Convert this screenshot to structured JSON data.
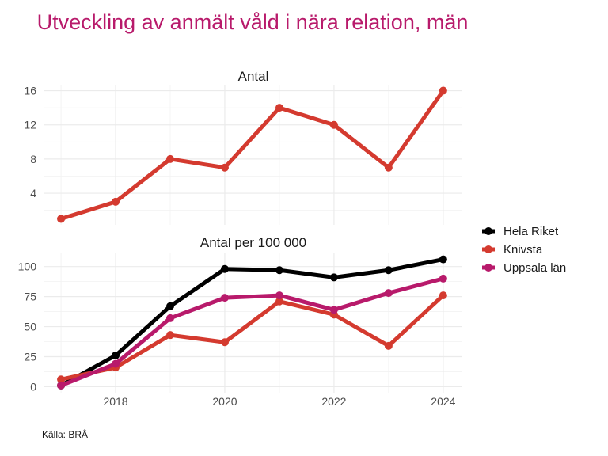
{
  "chart_data": {
    "type": "line",
    "title": "Utveckling av anmält våld i nära relation, män",
    "caption": "Källa: BRÅ",
    "x": [
      2017,
      2018,
      2019,
      2020,
      2021,
      2022,
      2023,
      2024
    ],
    "x_ticks": [
      "2018",
      "2020",
      "2022",
      "2024"
    ],
    "legend": {
      "placement": "right",
      "entries": [
        {
          "name": "Hela Riket",
          "color": "#000000"
        },
        {
          "name": "Knivsta",
          "color": "#d43a2f"
        },
        {
          "name": "Uppsala län",
          "color": "#b81a6b"
        }
      ]
    },
    "panels": [
      {
        "title": "Antal",
        "ylim": [
          0.3,
          16.7
        ],
        "y_ticks": [
          4,
          8,
          12,
          16
        ],
        "y_minor": [
          2,
          6,
          10,
          14
        ],
        "series": [
          {
            "name": "Knivsta",
            "color": "#d43a2f",
            "values": [
              1,
              3,
              8,
              7,
              14,
              12,
              7,
              16
            ]
          }
        ]
      },
      {
        "title": "Antal per 100 000",
        "ylim": [
          -5,
          111
        ],
        "y_ticks": [
          0,
          25,
          50,
          75,
          100
        ],
        "y_minor": [
          12.5,
          37.5,
          62.5,
          87.5
        ],
        "series": [
          {
            "name": "Hela Riket",
            "color": "#000000",
            "values": [
              1,
              26,
              67,
              98,
              97,
              91,
              97,
              106
            ]
          },
          {
            "name": "Knivsta",
            "color": "#d43a2f",
            "values": [
              6,
              16,
              43,
              37,
              71,
              60,
              34,
              76
            ]
          },
          {
            "name": "Uppsala län",
            "color": "#b81a6b",
            "values": [
              1,
              19,
              57,
              74,
              76,
              64,
              78,
              90
            ]
          }
        ]
      }
    ]
  }
}
